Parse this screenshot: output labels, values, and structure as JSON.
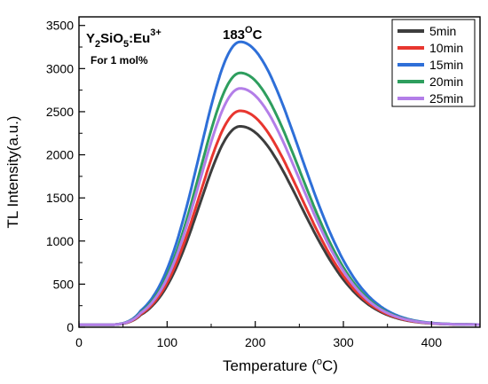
{
  "chart_data": {
    "type": "line",
    "xlabel_main": "Temperature (",
    "xlabel_sup": "o",
    "xlabel_end": "C)",
    "ylabel": "TL Intensity(a.u.)",
    "xlim": [
      0,
      455
    ],
    "ylim": [
      0,
      3600
    ],
    "x_ticks": [
      0,
      100,
      200,
      300,
      400
    ],
    "y_ticks": [
      0,
      500,
      1000,
      1500,
      2000,
      2500,
      3000,
      3500
    ],
    "x_minor_step": 50,
    "y_minor_step": 250,
    "grid": false,
    "legend_position": "top-right",
    "annotations": {
      "material": {
        "base1": "Y",
        "sub1": "2",
        "base2": "SiO",
        "sub2": "5",
        "base3": ":Eu",
        "sup": "3+"
      },
      "concentration": "For 1 mol%",
      "peak": {
        "base": "183",
        "sup": "O",
        "end": "C"
      }
    },
    "curve_shape": {
      "baseline": 30,
      "onset_x": 40,
      "peak_x": 183,
      "sigma_left": 46,
      "sigma_right": 68,
      "x_start": 0,
      "x_end": 455
    },
    "series": [
      {
        "name": "5min",
        "color": "#3d3d3d",
        "peak_value": 2330
      },
      {
        "name": "10min",
        "color": "#e8362f",
        "peak_value": 2510
      },
      {
        "name": "15min",
        "color": "#2e6fd8",
        "peak_value": 3310
      },
      {
        "name": "20min",
        "color": "#2e9e5e",
        "peak_value": 2950
      },
      {
        "name": "25min",
        "color": "#b37ee8",
        "peak_value": 2770
      }
    ]
  }
}
